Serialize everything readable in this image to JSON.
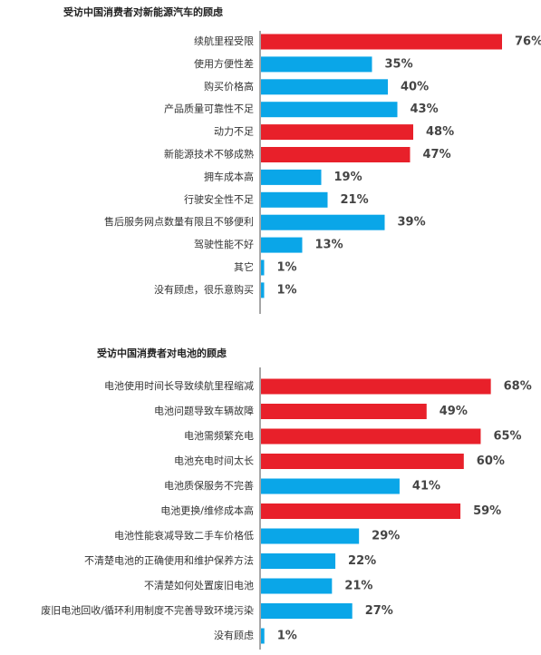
{
  "chart_data": [
    {
      "type": "bar",
      "orientation": "horizontal",
      "title": "受访中国消费者对新能源汽车的顾虑",
      "categories": [
        "续航里程受限",
        "使用方便性差",
        "购买价格高",
        "产品质量可靠性不足",
        "动力不足",
        "新能源技术不够成熟",
        "拥车成本高",
        "行驶安全性不足",
        "售后服务网点数量有限且不够便利",
        "驾驶性能不好",
        "其它",
        "没有顾虑，很乐意购买"
      ],
      "values": [
        76,
        35,
        40,
        43,
        48,
        47,
        19,
        21,
        39,
        13,
        1,
        1
      ],
      "value_labels": [
        "76%",
        "35%",
        "40%",
        "43%",
        "48%",
        "47%",
        "19%",
        "21%",
        "39%",
        "13%",
        "1%",
        "1%"
      ],
      "colors": [
        "#e8202a",
        "#0aa6e8",
        "#0aa6e8",
        "#0aa6e8",
        "#e8202a",
        "#e8202a",
        "#0aa6e8",
        "#0aa6e8",
        "#0aa6e8",
        "#0aa6e8",
        "#0aa6e8",
        "#0aa6e8"
      ]
    },
    {
      "type": "bar",
      "orientation": "horizontal",
      "title": "受访中国消费者对电池的顾虑",
      "categories": [
        "电池使用时间长导致续航里程缩减",
        "电池问题导致车辆故障",
        "电池需频繁充电",
        "电池充电时间太长",
        "电池质保服务不完善",
        "电池更换/维修成本高",
        "电池性能衰减导致二手车价格低",
        "不清楚电池的正确使用和维护保养方法",
        "不清楚如何处置废旧电池",
        "废旧电池回收/循环利用制度不完善导致环境污染",
        "没有顾虑"
      ],
      "values": [
        68,
        49,
        65,
        60,
        41,
        59,
        29,
        22,
        21,
        27,
        1
      ],
      "value_labels": [
        "68%",
        "49%",
        "65%",
        "60%",
        "41%",
        "59%",
        "29%",
        "22%",
        "21%",
        "27%",
        "1%"
      ],
      "colors": [
        "#e8202a",
        "#e8202a",
        "#e8202a",
        "#e8202a",
        "#0aa6e8",
        "#e8202a",
        "#0aa6e8",
        "#0aa6e8",
        "#0aa6e8",
        "#0aa6e8",
        "#0aa6e8"
      ]
    }
  ]
}
